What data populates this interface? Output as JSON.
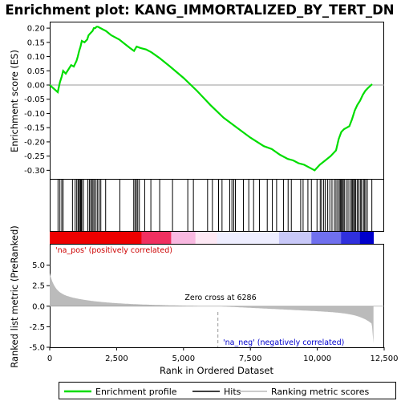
{
  "chart_data": {
    "type": "line",
    "title": "Enrichment plot: KANG_IMMORTALIZED_BY_TERT_DN",
    "ylabel_top": "Enrichment score (ES)",
    "ylabel_bottom": "Ranked list metric (PreRanked)",
    "xlabel": "Rank in Ordered Dataset",
    "x_range": [
      0,
      12500
    ],
    "x_ticks": [
      0,
      2500,
      5000,
      7500,
      10000,
      12500
    ],
    "x_tick_labels": [
      "0",
      "2,500",
      "5,000",
      "7,500",
      "10,000",
      "12,500"
    ],
    "es_y_range": [
      -0.33,
      0.22
    ],
    "es_y_ticks": [
      0.2,
      0.15,
      0.1,
      0.05,
      0.0,
      -0.05,
      -0.1,
      -0.15,
      -0.2,
      -0.25,
      -0.3
    ],
    "es_y_tick_labels": [
      "0.20",
      "0.15",
      "0.10",
      "0.05",
      "0.00",
      "-0.05",
      "-0.10",
      "-0.15",
      "-0.20",
      "-0.25",
      "-0.30"
    ],
    "metric_y_range": [
      -5,
      7.5
    ],
    "metric_y_ticks": [
      5.0,
      2.5,
      0.0,
      -2.5,
      -5.0
    ],
    "metric_y_tick_labels": [
      "5.0",
      "2.5",
      "0.0",
      "-2.5",
      "-5.0"
    ],
    "n_genes": 12100,
    "zero_cross_rank": 6286,
    "zero_cross_label": "Zero cross at 6286",
    "pos_label": "'na_pos' (positively correlated)",
    "neg_label": "'na_neg' (negatively correlated)",
    "series": [
      {
        "name": "Enrichment profile",
        "color": "#00dd00",
        "x": [
          0,
          300,
          380,
          450,
          500,
          600,
          800,
          900,
          1000,
          1050,
          1100,
          1150,
          1200,
          1300,
          1400,
          1450,
          1500,
          1550,
          1600,
          1650,
          1700,
          1750,
          1800,
          1900,
          2000,
          2100,
          2300,
          2600,
          2800,
          3000,
          3150,
          3250,
          3400,
          3600,
          3800,
          4100,
          4500,
          5000,
          5500,
          6000,
          6500,
          7000,
          7500,
          8000,
          8300,
          8600,
          8900,
          9100,
          9300,
          9500,
          9700,
          9900,
          10100,
          10300,
          10500,
          10700,
          10800,
          10900,
          11000,
          11100,
          11200,
          11300,
          11400,
          11500,
          11600,
          11700,
          11800,
          11900,
          12050
        ],
        "y": [
          0.0,
          -0.025,
          0.01,
          0.03,
          0.05,
          0.04,
          0.07,
          0.065,
          0.085,
          0.1,
          0.12,
          0.135,
          0.155,
          0.15,
          0.16,
          0.175,
          0.18,
          0.185,
          0.19,
          0.2,
          0.2,
          0.205,
          0.205,
          0.2,
          0.195,
          0.19,
          0.175,
          0.16,
          0.145,
          0.13,
          0.12,
          0.135,
          0.13,
          0.125,
          0.115,
          0.095,
          0.065,
          0.025,
          -0.02,
          -0.07,
          -0.115,
          -0.15,
          -0.185,
          -0.215,
          -0.225,
          -0.245,
          -0.26,
          -0.265,
          -0.275,
          -0.28,
          -0.29,
          -0.3,
          -0.28,
          -0.265,
          -0.25,
          -0.23,
          -0.19,
          -0.165,
          -0.155,
          -0.15,
          -0.145,
          -0.12,
          -0.09,
          -0.07,
          -0.055,
          -0.035,
          -0.02,
          -0.01,
          0.003
        ]
      },
      {
        "name": "Hits",
        "color": "#000000"
      },
      {
        "name": "Ranking metric scores",
        "color": "#bbbbbb"
      }
    ],
    "hits": [
      310,
      380,
      450,
      500,
      850,
      950,
      1010,
      1060,
      1100,
      1140,
      1170,
      1200,
      1260,
      1420,
      1480,
      1530,
      1580,
      1620,
      1670,
      1730,
      1790,
      1850,
      1910,
      2090,
      2620,
      3140,
      3190,
      3240,
      3290,
      3350,
      3550,
      3780,
      4110,
      4590,
      5160,
      5370,
      5900,
      6080,
      6310,
      6440,
      6730,
      6810,
      6880,
      6940,
      7240,
      7440,
      7620,
      7840,
      8130,
      8320,
      8480,
      8740,
      8910,
      9030,
      9380,
      9470,
      9650,
      9780,
      9990,
      10110,
      10160,
      10240,
      10300,
      10390,
      10470,
      10550,
      10640,
      10700,
      10760,
      10820,
      10860,
      10890,
      10930,
      10970,
      11010,
      11080,
      11150,
      11220,
      11280,
      11320,
      11360,
      11400,
      11440,
      11500,
      11550,
      11610,
      11650,
      11720,
      11760,
      11810,
      11870,
      12040
    ]
  }
}
